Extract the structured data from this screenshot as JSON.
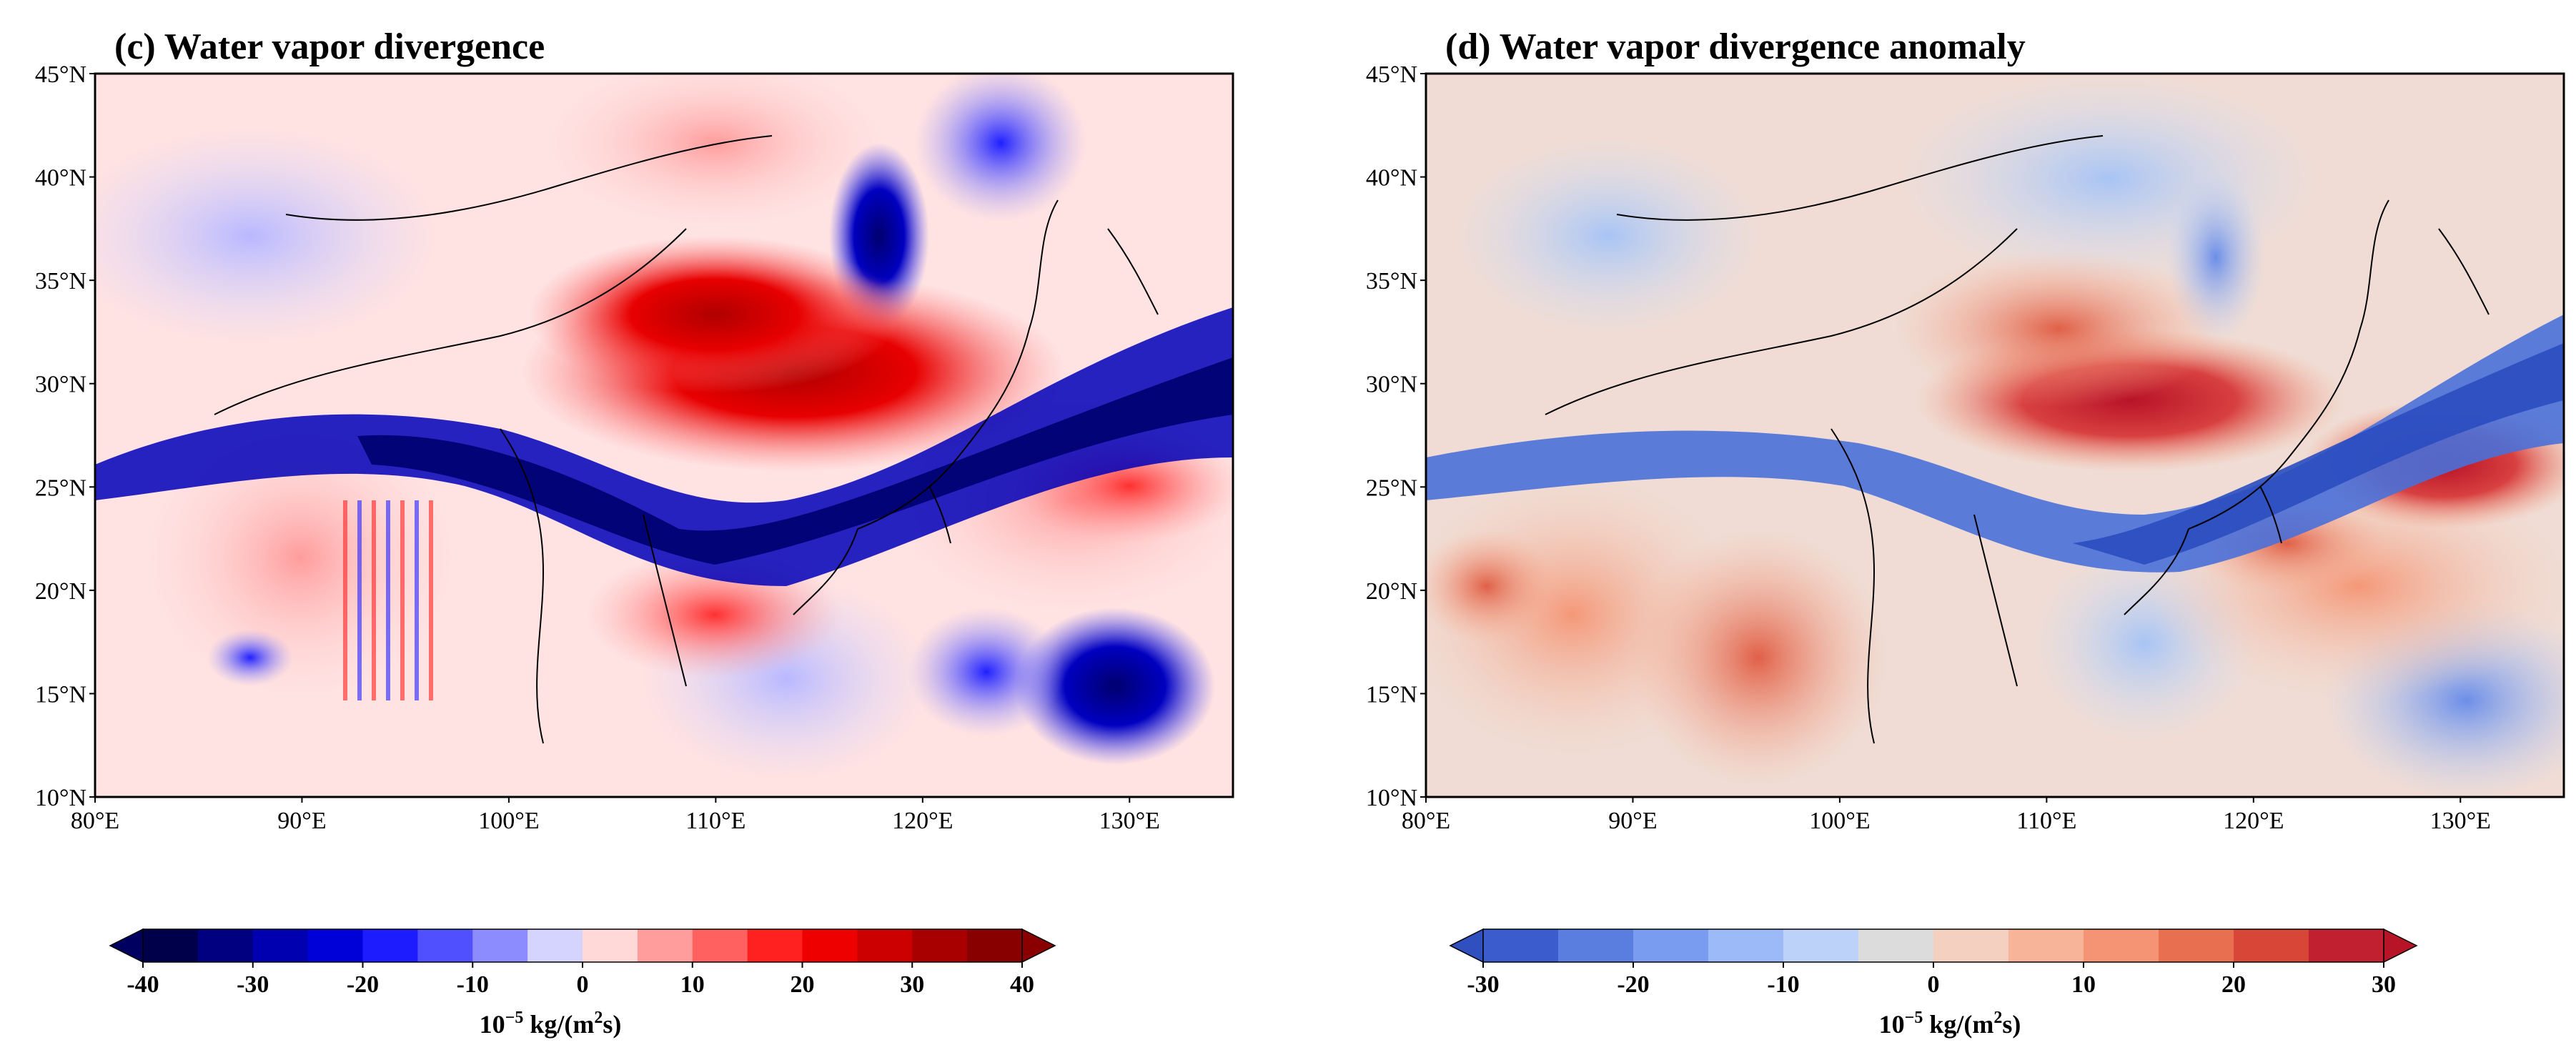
{
  "panels": [
    {
      "id": "c",
      "title": "(c) Water vapor divergence",
      "lat_labels": [
        "45°N",
        "40°N",
        "35°N",
        "30°N",
        "25°N",
        "20°N",
        "15°N",
        "10°N"
      ],
      "lon_labels": [
        "80°E",
        "90°E",
        "100°E",
        "110°E",
        "120°E",
        "130°E"
      ],
      "colorbar": {
        "ticks": [
          "-40",
          "-30",
          "-20",
          "-10",
          "0",
          "10",
          "20",
          "30",
          "40"
        ],
        "unit_prefix": "10",
        "unit_exp": "−5",
        "unit_main": " kg/(m",
        "unit_sq": "2",
        "unit_end": "s)",
        "colors": [
          "#00004a",
          "#000080",
          "#0000b0",
          "#0000d8",
          "#1c1cff",
          "#5050ff",
          "#8c8cff",
          "#d4d4ff",
          "#ffd8d8",
          "#ff9c9c",
          "#ff6060",
          "#ff2020",
          "#ee0000",
          "#cc0000",
          "#a80000",
          "#880000"
        ]
      },
      "color_low": "#000060",
      "color_high": "#8a0000"
    },
    {
      "id": "d",
      "title": "(d) Water vapor divergence anomaly",
      "lat_labels": [
        "45°N",
        "40°N",
        "35°N",
        "30°N",
        "25°N",
        "20°N",
        "15°N",
        "10°N"
      ],
      "lon_labels": [
        "80°E",
        "90°E",
        "100°E",
        "110°E",
        "120°E",
        "130°E"
      ],
      "colorbar": {
        "ticks": [
          "-30",
          "-20",
          "-10",
          "0",
          "10",
          "20",
          "30"
        ],
        "unit_prefix": "10",
        "unit_exp": "−5",
        "unit_main": " kg/(m",
        "unit_sq": "2",
        "unit_end": "s)",
        "colors": [
          "#3a5ccc",
          "#5a7ee0",
          "#7a9cf0",
          "#9cbaf8",
          "#bcd2f8",
          "#dcdcdc",
          "#f4d0c0",
          "#f8b498",
          "#f49474",
          "#e87050",
          "#d84638",
          "#c02030"
        ]
      },
      "color_low": "#3050c0",
      "color_high": "#b81428"
    }
  ]
}
